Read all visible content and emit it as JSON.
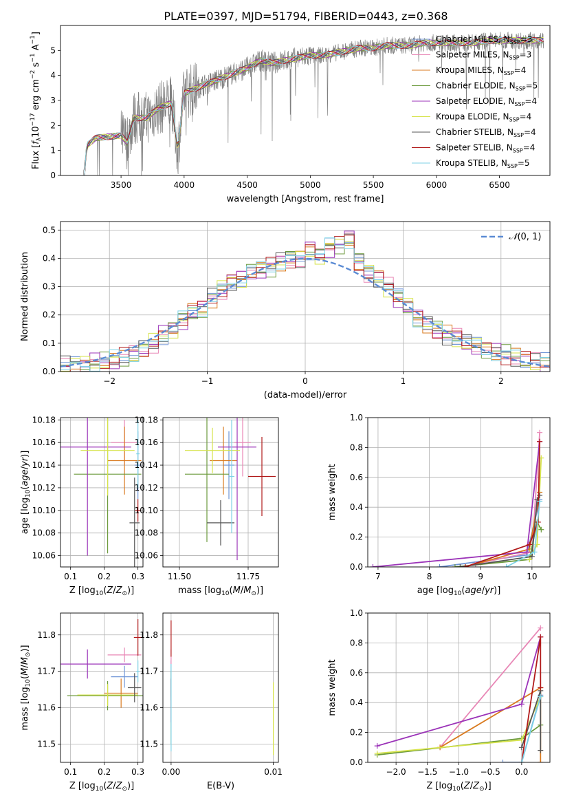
{
  "figure": {
    "title": "PLATE=0397, MJD=51794, FIBERID=0443, z=0.368"
  },
  "models": [
    {
      "name": "Chabrier MILES",
      "n": "3",
      "color": "#6f95d6"
    },
    {
      "name": "Salpeter MILES",
      "n": "3",
      "color": "#e887b6"
    },
    {
      "name": "Kroupa MILES",
      "n": "4",
      "color": "#d97a1f"
    },
    {
      "name": "Chabrier ELODIE",
      "n": "5",
      "color": "#6c9a3c"
    },
    {
      "name": "Salpeter ELODIE",
      "n": "4",
      "color": "#9b33b8"
    },
    {
      "name": "Kroupa ELODIE",
      "n": "4",
      "color": "#d6e34a"
    },
    {
      "name": "Chabrier STELIB",
      "n": "4",
      "color": "#555555"
    },
    {
      "name": "Salpeter STELIB",
      "n": "4",
      "color": "#b11a1a"
    },
    {
      "name": "Kroupa STELIB",
      "n": "5",
      "color": "#7ed2e6"
    }
  ],
  "chart_data": [
    {
      "id": "spectrum",
      "type": "line",
      "xlabel": "wavelength [Angstrom, rest frame]",
      "ylabel": "Flux [f_λ 10^-17 erg cm^-2 s^-1 A^-1]",
      "xlim": [
        3020,
        6900
      ],
      "ylim": [
        0,
        6
      ],
      "xticks": [
        3500,
        4000,
        4500,
        5000,
        5500,
        6000,
        6500
      ],
      "yticks": [
        0,
        1,
        2,
        3,
        4,
        5
      ],
      "data_color": "#808080",
      "model_x": [
        3200,
        3230,
        3300,
        3400,
        3500,
        3550,
        3600,
        3700,
        3800,
        3900,
        3950,
        4000,
        4050,
        4100,
        4200,
        4300,
        4400,
        4500,
        4600,
        4700,
        4800,
        4900,
        5000,
        5100,
        5200,
        5300,
        5400,
        5500,
        5600,
        5700,
        5800,
        5900,
        6000,
        6100,
        6200,
        6300,
        6400,
        6500,
        6600,
        6800
      ],
      "model_y": [
        0,
        1.2,
        1.5,
        1.55,
        1.6,
        1.3,
        2.3,
        2.3,
        2.7,
        2.9,
        1.0,
        3.3,
        3.4,
        3.5,
        3.7,
        3.9,
        4.1,
        4.3,
        4.6,
        4.5,
        4.6,
        4.7,
        4.8,
        4.8,
        4.9,
        5.0,
        5.1,
        5.1,
        5.2,
        5.2,
        5.2,
        5.3,
        5.3,
        5.3,
        5.3,
        5.3,
        5.4,
        5.4,
        5.4,
        5.4
      ],
      "legend": "top-right"
    },
    {
      "id": "residual-histogram",
      "type": "line",
      "xlabel": "(data-model)/error",
      "ylabel": "Normed distribution",
      "xlim": [
        -2.5,
        2.5
      ],
      "ylim": [
        0,
        0.53
      ],
      "xticks": [
        -2,
        -1,
        0,
        1,
        2
      ],
      "yticks": [
        0.0,
        0.1,
        0.2,
        0.3,
        0.4,
        0.5
      ],
      "series": [
        {
          "name": "N(0,1)",
          "color": "#5b8bd4",
          "style": "dashed"
        }
      ],
      "bin_centers": [
        -2.45,
        -2.35,
        -2.25,
        -2.15,
        -2.05,
        -1.95,
        -1.85,
        -1.75,
        -1.65,
        -1.55,
        -1.45,
        -1.35,
        -1.25,
        -1.15,
        -1.05,
        -0.95,
        -0.85,
        -0.75,
        -0.65,
        -0.55,
        -0.45,
        -0.35,
        -0.25,
        -0.15,
        -0.05,
        0.05,
        0.15,
        0.25,
        0.35,
        0.45,
        0.55,
        0.65,
        0.75,
        0.85,
        0.95,
        1.05,
        1.15,
        1.25,
        1.35,
        1.45,
        1.55,
        1.65,
        1.75,
        1.85,
        1.95,
        2.05,
        2.15,
        2.25,
        2.35,
        2.45
      ],
      "hist_base": [
        0.02,
        0.02,
        0.025,
        0.03,
        0.035,
        0.04,
        0.05,
        0.06,
        0.08,
        0.1,
        0.13,
        0.15,
        0.18,
        0.21,
        0.22,
        0.26,
        0.29,
        0.32,
        0.33,
        0.35,
        0.36,
        0.37,
        0.39,
        0.4,
        0.4,
        0.43,
        0.41,
        0.44,
        0.45,
        0.47,
        0.39,
        0.35,
        0.33,
        0.3,
        0.26,
        0.23,
        0.19,
        0.17,
        0.15,
        0.13,
        0.12,
        0.1,
        0.09,
        0.08,
        0.07,
        0.06,
        0.05,
        0.04,
        0.035,
        0.03
      ],
      "legend": "top-right"
    },
    {
      "id": "age-vs-Z",
      "type": "scatter",
      "xlabel": "Z [log10(Z/Z⊙)]",
      "ylabel": "age  [log10(age/yr)]",
      "xlim": [
        0.07,
        0.315
      ],
      "ylim": [
        10.05,
        10.182
      ],
      "xticks": [
        0.1,
        0.2,
        0.3
      ],
      "yticks": [
        10.06,
        10.08,
        10.1,
        10.12,
        10.14,
        10.16,
        10.18
      ],
      "points": [
        {
          "model": 0,
          "x": 0.3,
          "xerr": 0.01,
          "y": 10.14,
          "yerr": 0.03
        },
        {
          "model": 1,
          "x": 0.26,
          "xerr": 0.04,
          "y": 10.16,
          "yerr": 0.02
        },
        {
          "model": 2,
          "x": 0.26,
          "xerr": 0.05,
          "y": 10.144,
          "yerr": 0.03
        },
        {
          "model": 3,
          "x": 0.21,
          "xerr": 0.1,
          "y": 10.132,
          "yerr": 0.07
        },
        {
          "model": 4,
          "x": 0.15,
          "xerr": 0.13,
          "y": 10.156,
          "yerr": 0.096
        },
        {
          "model": 5,
          "x": 0.21,
          "xerr": 0.08,
          "y": 10.153,
          "yerr": 0.04
        },
        {
          "model": 6,
          "x": 0.29,
          "xerr": 0.015,
          "y": 10.089,
          "yerr": 0.04
        },
        {
          "model": 7,
          "x": 0.3,
          "xerr": 0.008,
          "y": 10.1,
          "yerr": 0.01
        },
        {
          "model": 8,
          "x": 0.3,
          "xerr": 0.005,
          "y": 10.15,
          "yerr": 0.03
        }
      ]
    },
    {
      "id": "age-vs-mass",
      "type": "scatter",
      "xlabel": "mass [log10(M/M⊙)]",
      "ylabel": "",
      "xlim": [
        11.44,
        11.86
      ],
      "ylim": [
        10.05,
        10.182
      ],
      "xticks": [
        11.5,
        11.75
      ],
      "yticks": [
        10.06,
        10.08,
        10.1,
        10.12,
        10.14,
        10.16,
        10.18
      ],
      "points": [
        {
          "model": 0,
          "x": 11.68,
          "xerr": 0.02,
          "y": 10.14,
          "yerr": 0.03
        },
        {
          "model": 1,
          "x": 11.73,
          "xerr": 0.03,
          "y": 10.16,
          "yerr": 0.03
        },
        {
          "model": 2,
          "x": 11.66,
          "xerr": 0.05,
          "y": 10.144,
          "yerr": 0.03
        },
        {
          "model": 3,
          "x": 11.6,
          "xerr": 0.08,
          "y": 10.132,
          "yerr": 0.06
        },
        {
          "model": 4,
          "x": 11.71,
          "xerr": 0.07,
          "y": 10.156,
          "yerr": 0.1
        },
        {
          "model": 5,
          "x": 11.62,
          "xerr": 0.1,
          "y": 10.153,
          "yerr": 0.02
        },
        {
          "model": 6,
          "x": 11.65,
          "xerr": 0.05,
          "y": 10.089,
          "yerr": 0.02
        },
        {
          "model": 7,
          "x": 11.8,
          "xerr": 0.05,
          "y": 10.13,
          "yerr": 0.035
        },
        {
          "model": 8,
          "x": 11.69,
          "xerr": 0.01,
          "y": 10.13,
          "yerr": 0.05
        }
      ]
    },
    {
      "id": "weight-vs-age",
      "type": "line",
      "xlabel": "age  [log10(age/yr)]",
      "ylabel": "mass weight",
      "xlim": [
        6.8,
        10.35
      ],
      "ylim": [
        0,
        1.0
      ],
      "xticks": [
        7,
        8,
        9,
        10
      ],
      "yticks": [
        0.0,
        0.2,
        0.4,
        0.6,
        0.8,
        1.0
      ],
      "series": [
        {
          "model": 0,
          "x": [
            8.2,
            9.9,
            10.15
          ],
          "y": [
            0.0,
            0.08,
            0.45
          ]
        },
        {
          "model": 1,
          "x": [
            8.9,
            10.0,
            10.15
          ],
          "y": [
            0.02,
            0.1,
            0.9
          ]
        },
        {
          "model": 2,
          "x": [
            8.7,
            9.95,
            10.15
          ],
          "y": [
            0.0,
            0.12,
            0.5
          ]
        },
        {
          "model": 3,
          "x": [
            8.5,
            9.95,
            10.1,
            10.18
          ],
          "y": [
            0.0,
            0.05,
            0.3,
            0.25
          ]
        },
        {
          "model": 4,
          "x": [
            6.9,
            9.9,
            10.15
          ],
          "y": [
            0.0,
            0.1,
            0.84
          ]
        },
        {
          "model": 5,
          "x": [
            9.95,
            10.1,
            10.18
          ],
          "y": [
            0.05,
            0.15,
            0.73
          ]
        },
        {
          "model": 6,
          "x": [
            8.6,
            10.0,
            10.1,
            10.15
          ],
          "y": [
            0.0,
            0.07,
            0.45,
            0.48
          ]
        },
        {
          "model": 7,
          "x": [
            8.7,
            9.95,
            10.12,
            10.15
          ],
          "y": [
            0.0,
            0.15,
            0.3,
            0.84
          ]
        },
        {
          "model": 8,
          "x": [
            9.5,
            10.05,
            10.15
          ],
          "y": [
            0.0,
            0.1,
            0.44
          ]
        }
      ]
    },
    {
      "id": "mass-vs-Z",
      "type": "scatter",
      "xlabel": "Z [log10(Z/Z⊙)]",
      "ylabel": "mass [log10(M/M⊙)]",
      "xlim": [
        0.07,
        0.315
      ],
      "ylim": [
        11.45,
        11.86
      ],
      "xticks": [
        0.1,
        0.2,
        0.3
      ],
      "yticks": [
        11.5,
        11.6,
        11.7,
        11.8
      ],
      "points": [
        {
          "model": 0,
          "x": 0.26,
          "xerr": 0.04,
          "y": 11.685,
          "yerr": 0.03
        },
        {
          "model": 1,
          "x": 0.26,
          "xerr": 0.05,
          "y": 11.745,
          "yerr": 0.02
        },
        {
          "model": 2,
          "x": 0.25,
          "xerr": 0.05,
          "y": 11.64,
          "yerr": 0.04
        },
        {
          "model": 3,
          "x": 0.21,
          "xerr": 0.12,
          "y": 11.633,
          "yerr": 0.04
        },
        {
          "model": 4,
          "x": 0.15,
          "xerr": 0.13,
          "y": 11.72,
          "yerr": 0.04
        },
        {
          "model": 5,
          "x": 0.21,
          "xerr": 0.09,
          "y": 11.635,
          "yerr": 0.03
        },
        {
          "model": 6,
          "x": 0.29,
          "xerr": 0.02,
          "y": 11.655,
          "yerr": 0.04
        },
        {
          "model": 7,
          "x": 0.3,
          "xerr": 0.012,
          "y": 11.793,
          "yerr": 0.05
        },
        {
          "model": 8,
          "x": 0.3,
          "xerr": 0.005,
          "y": 11.7,
          "yerr": 0.03
        }
      ]
    },
    {
      "id": "mass-vs-ebv",
      "type": "scatter",
      "xlabel": "E(B-V)",
      "ylabel": "",
      "xlim": [
        -0.0008,
        0.0105
      ],
      "ylim": [
        11.45,
        11.86
      ],
      "xticks": [
        0.0,
        0.01
      ],
      "yticks": [
        11.5,
        11.6,
        11.7,
        11.8
      ],
      "points": [
        {
          "model": 0,
          "x": 0.0,
          "y": 11.68,
          "yerr": 0.05
        },
        {
          "model": 1,
          "x": 0.0,
          "y": 11.74,
          "yerr": 0.02
        },
        {
          "model": 2,
          "x": 0.0,
          "y": 11.64,
          "yerr": 0.04
        },
        {
          "model": 3,
          "x": 0.0,
          "y": 11.6,
          "yerr": 0.1
        },
        {
          "model": 4,
          "x": 0.0,
          "y": 11.62,
          "yerr": 0.06
        },
        {
          "model": 5,
          "x": 0.01,
          "y": 11.57,
          "yerr": 0.1
        },
        {
          "model": 6,
          "x": 0.0,
          "y": 11.65,
          "yerr": 0.03
        },
        {
          "model": 7,
          "x": 0.0,
          "y": 11.79,
          "yerr": 0.05
        },
        {
          "model": 8,
          "x": 0.0,
          "y": 11.6,
          "yerr": 0.12
        }
      ]
    },
    {
      "id": "weight-vs-Z",
      "type": "line",
      "xlabel": "Z [log10(Z/Z⊙)]",
      "ylabel": "mass weight",
      "xlim": [
        -2.45,
        0.45
      ],
      "ylim": [
        0,
        1.0
      ],
      "xticks": [
        -2.0,
        -1.5,
        -1.0,
        -0.5,
        0.0
      ],
      "yticks": [
        0.0,
        0.2,
        0.4,
        0.6,
        0.8,
        1.0
      ],
      "series": [
        {
          "model": 0,
          "x": [
            -0.3,
            0.0,
            0.3
          ],
          "y": [
            0.0,
            0.0,
            0.45
          ]
        },
        {
          "model": 1,
          "x": [
            -1.3,
            0.3
          ],
          "y": [
            0.1,
            0.9
          ]
        },
        {
          "model": 2,
          "x": [
            -1.3,
            0.3,
            0.3
          ],
          "y": [
            0.1,
            0.5,
            0.0
          ]
        },
        {
          "model": 3,
          "x": [
            -2.3,
            0.0,
            0.3
          ],
          "y": [
            0.05,
            0.16,
            0.25
          ]
        },
        {
          "model": 4,
          "x": [
            -2.3,
            0.0,
            0.3
          ],
          "y": [
            0.11,
            0.39,
            0.84
          ]
        },
        {
          "model": 5,
          "x": [
            -2.3,
            0.0,
            0.3
          ],
          "y": [
            0.06,
            0.15,
            0.44
          ]
        },
        {
          "model": 6,
          "x": [
            0.0,
            0.3,
            0.3
          ],
          "y": [
            0.1,
            0.48,
            0.08
          ]
        },
        {
          "model": 7,
          "x": [
            0.0,
            0.3,
            0.3
          ],
          "y": [
            0.0,
            0.84,
            0.5
          ]
        },
        {
          "model": 8,
          "x": [
            0.0,
            0.3
          ],
          "y": [
            0.0,
            0.44
          ]
        }
      ]
    }
  ]
}
